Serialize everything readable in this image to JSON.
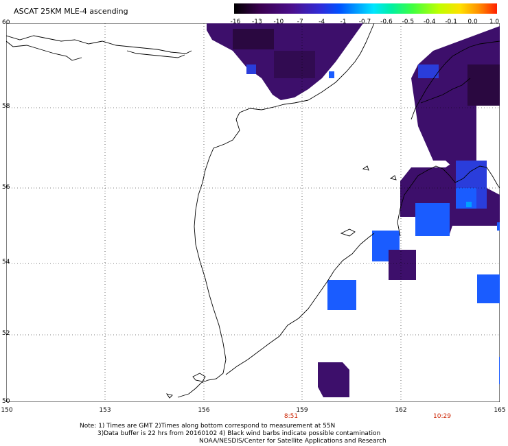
{
  "title": "ASCAT 25KM MLE-4 ascending",
  "colorbar": {
    "labels": [
      "-16",
      "-13",
      "-10",
      "-7",
      "-4",
      "-1",
      "-0.7",
      "-0.6",
      "-0.5",
      "-0.4",
      "-0.1",
      "0.0",
      "1.0"
    ]
  },
  "axes": {
    "lat_labels": [
      "60",
      "58",
      "56",
      "54",
      "52",
      "50"
    ],
    "lon_labels": [
      "150",
      "153",
      "156",
      "159",
      "162",
      "165"
    ]
  },
  "times": [
    "8:51",
    "10:29"
  ],
  "notes": {
    "line1": "Note: 1) Times are GMT 2)Times along bottom correspond to measurement at 55N",
    "line2": "3)Data buffer is 22 hrs from 20160102 4) Black wind barbs indicate possible contamination",
    "line3": "NOAA/NESDIS/Center for Satellite Applications and Research"
  },
  "colors": {
    "deep_purple": "#3d0f6b",
    "dark_purple": "#2a0840",
    "blue": "#1a5cff",
    "royal_blue": "#2a3ddb",
    "coast": "#000000",
    "grid": "#000000"
  }
}
